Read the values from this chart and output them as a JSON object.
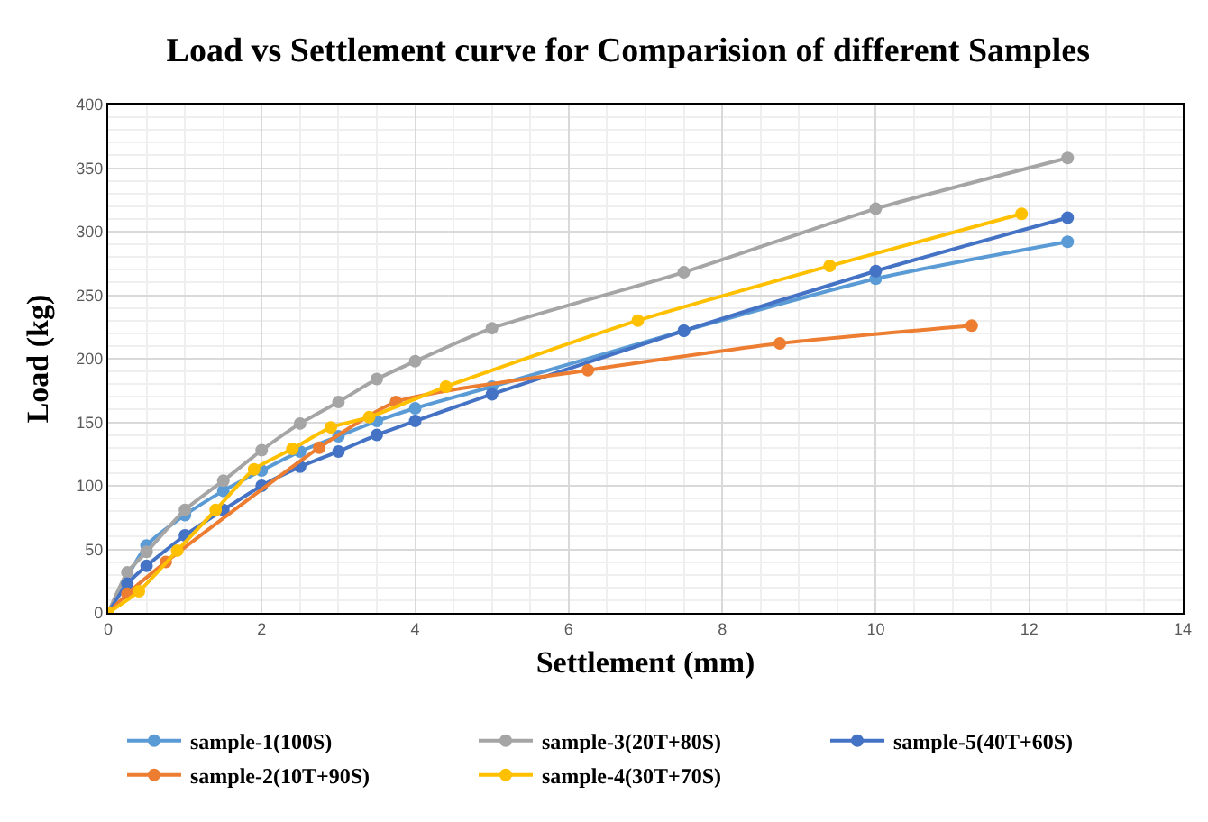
{
  "chart_data": {
    "type": "line",
    "title": "Load vs Settlement curve for Comparision of different Samples",
    "xlabel": "Settlement (mm)",
    "ylabel": "Load (kg)",
    "xlim": [
      0,
      14
    ],
    "xticks": [
      0,
      2,
      4,
      6,
      8,
      10,
      12,
      14
    ],
    "ylim": [
      0,
      400
    ],
    "yticks": [
      0,
      50,
      100,
      150,
      200,
      250,
      300,
      350,
      400
    ],
    "grid": true,
    "legend": "bottom",
    "marker": "circle",
    "line_style": "solid",
    "series": [
      {
        "name": "sample-1(100S)",
        "color": "#5b9bd5",
        "x": [
          0,
          0.5,
          1,
          1.5,
          2,
          2.5,
          3,
          3.5,
          4,
          5,
          7.5,
          10,
          12.5
        ],
        "values": [
          0,
          53,
          77,
          96,
          112,
          127,
          139,
          151,
          161,
          178,
          222,
          263,
          292
        ]
      },
      {
        "name": "sample-3(20T+80S)",
        "color": "#a5a5a5",
        "x": [
          0,
          0.25,
          0.5,
          1,
          1.5,
          2,
          2.5,
          3,
          3.5,
          4,
          5,
          7.5,
          10,
          12.5
        ],
        "values": [
          0,
          32,
          48,
          81,
          104,
          128,
          149,
          166,
          184,
          198,
          224,
          268,
          318,
          358
        ]
      },
      {
        "name": "sample-5(40T+60S)",
        "color": "#4472c4",
        "x": [
          0,
          0.25,
          0.5,
          1,
          1.5,
          2,
          2.5,
          3,
          3.5,
          4,
          5,
          7.5,
          10,
          12.5
        ],
        "values": [
          0,
          23,
          37,
          61,
          81,
          100,
          115,
          127,
          140,
          151,
          172,
          222,
          269,
          311
        ]
      },
      {
        "name": "sample-2(10T+90S)",
        "color": "#ed7d31",
        "x": [
          0,
          0.25,
          0.75,
          2.75,
          3.75,
          6.25,
          8.75,
          11.25
        ],
        "values": [
          0,
          15,
          40,
          130,
          166,
          191,
          212,
          226
        ]
      },
      {
        "name": "sample-4(30T+70S)",
        "color": "#ffc000",
        "x": [
          0,
          0.4,
          0.9,
          1.4,
          1.9,
          2.4,
          2.9,
          3.4,
          4.4,
          6.9,
          9.4,
          11.9
        ],
        "values": [
          0,
          17,
          49,
          81,
          113,
          129,
          146,
          154,
          178,
          230,
          273,
          314
        ]
      }
    ]
  }
}
